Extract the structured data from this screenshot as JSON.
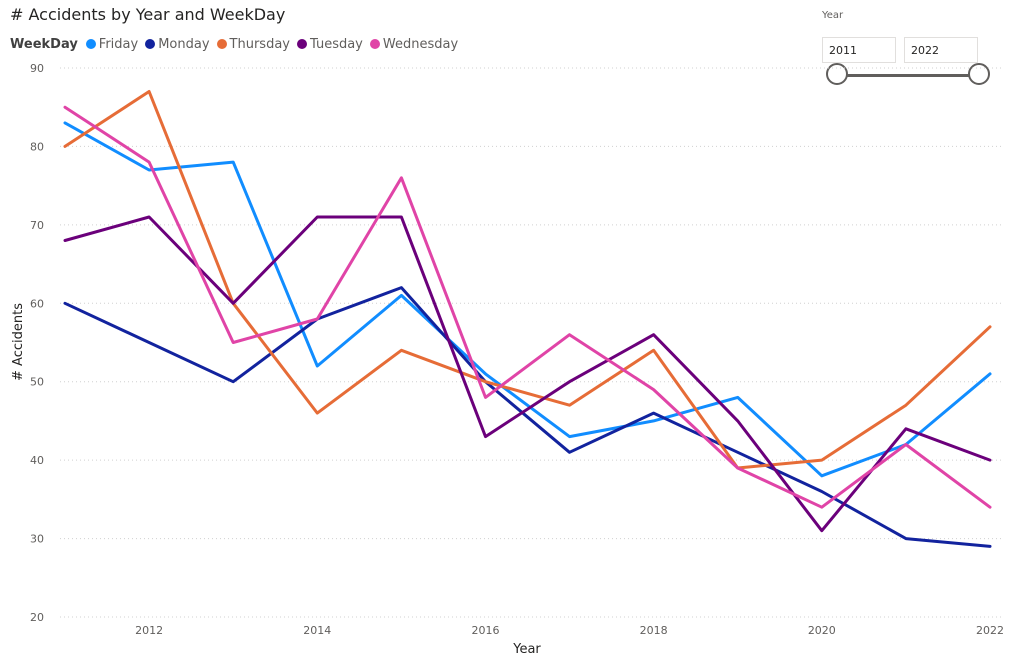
{
  "title": "# Accidents by Year and WeekDay",
  "legend": {
    "title": "WeekDay",
    "items": [
      {
        "label": "Friday",
        "color": "#118dff"
      },
      {
        "label": "Monday",
        "color": "#12239e"
      },
      {
        "label": "Thursday",
        "color": "#e66c37"
      },
      {
        "label": "Tuesday",
        "color": "#6b007b"
      },
      {
        "label": "Wednesday",
        "color": "#e044a7"
      }
    ]
  },
  "slicer": {
    "title": "Year",
    "start_value": "2011",
    "end_value": "2022"
  },
  "chart_data": {
    "type": "line",
    "title": "# Accidents by Year and WeekDay",
    "xlabel": "Year",
    "ylabel": "# Accidents",
    "x": [
      2011,
      2012,
      2013,
      2014,
      2015,
      2016,
      2017,
      2018,
      2019,
      2020,
      2021,
      2022
    ],
    "x_ticks": [
      "2012",
      "2014",
      "2016",
      "2018",
      "2020",
      "2022"
    ],
    "x_tick_values": [
      2012,
      2014,
      2016,
      2018,
      2020,
      2022
    ],
    "y_ticks": [
      "20",
      "30",
      "40",
      "50",
      "60",
      "70",
      "80",
      "90"
    ],
    "y_tick_values": [
      20,
      30,
      40,
      50,
      60,
      70,
      80,
      90
    ],
    "ylim": [
      20,
      90
    ],
    "xlim": [
      2011,
      2022
    ],
    "grid": true,
    "legend_position": "top-left",
    "series": [
      {
        "name": "Friday",
        "color": "#118dff",
        "values": [
          83,
          77,
          78,
          52,
          61,
          51,
          43,
          45,
          48,
          38,
          42,
          51
        ]
      },
      {
        "name": "Monday",
        "color": "#12239e",
        "values": [
          60,
          55,
          50,
          58,
          62,
          50,
          41,
          46,
          41,
          36,
          30,
          29
        ]
      },
      {
        "name": "Thursday",
        "color": "#e66c37",
        "values": [
          80,
          87,
          60,
          46,
          54,
          50,
          47,
          54,
          39,
          40,
          47,
          57
        ]
      },
      {
        "name": "Tuesday",
        "color": "#6b007b",
        "values": [
          68,
          71,
          60,
          71,
          71,
          43,
          50,
          56,
          45,
          31,
          44,
          40
        ]
      },
      {
        "name": "Wednesday",
        "color": "#e044a7",
        "values": [
          85,
          78,
          55,
          58,
          76,
          48,
          56,
          49,
          39,
          34,
          42,
          34
        ]
      }
    ]
  }
}
